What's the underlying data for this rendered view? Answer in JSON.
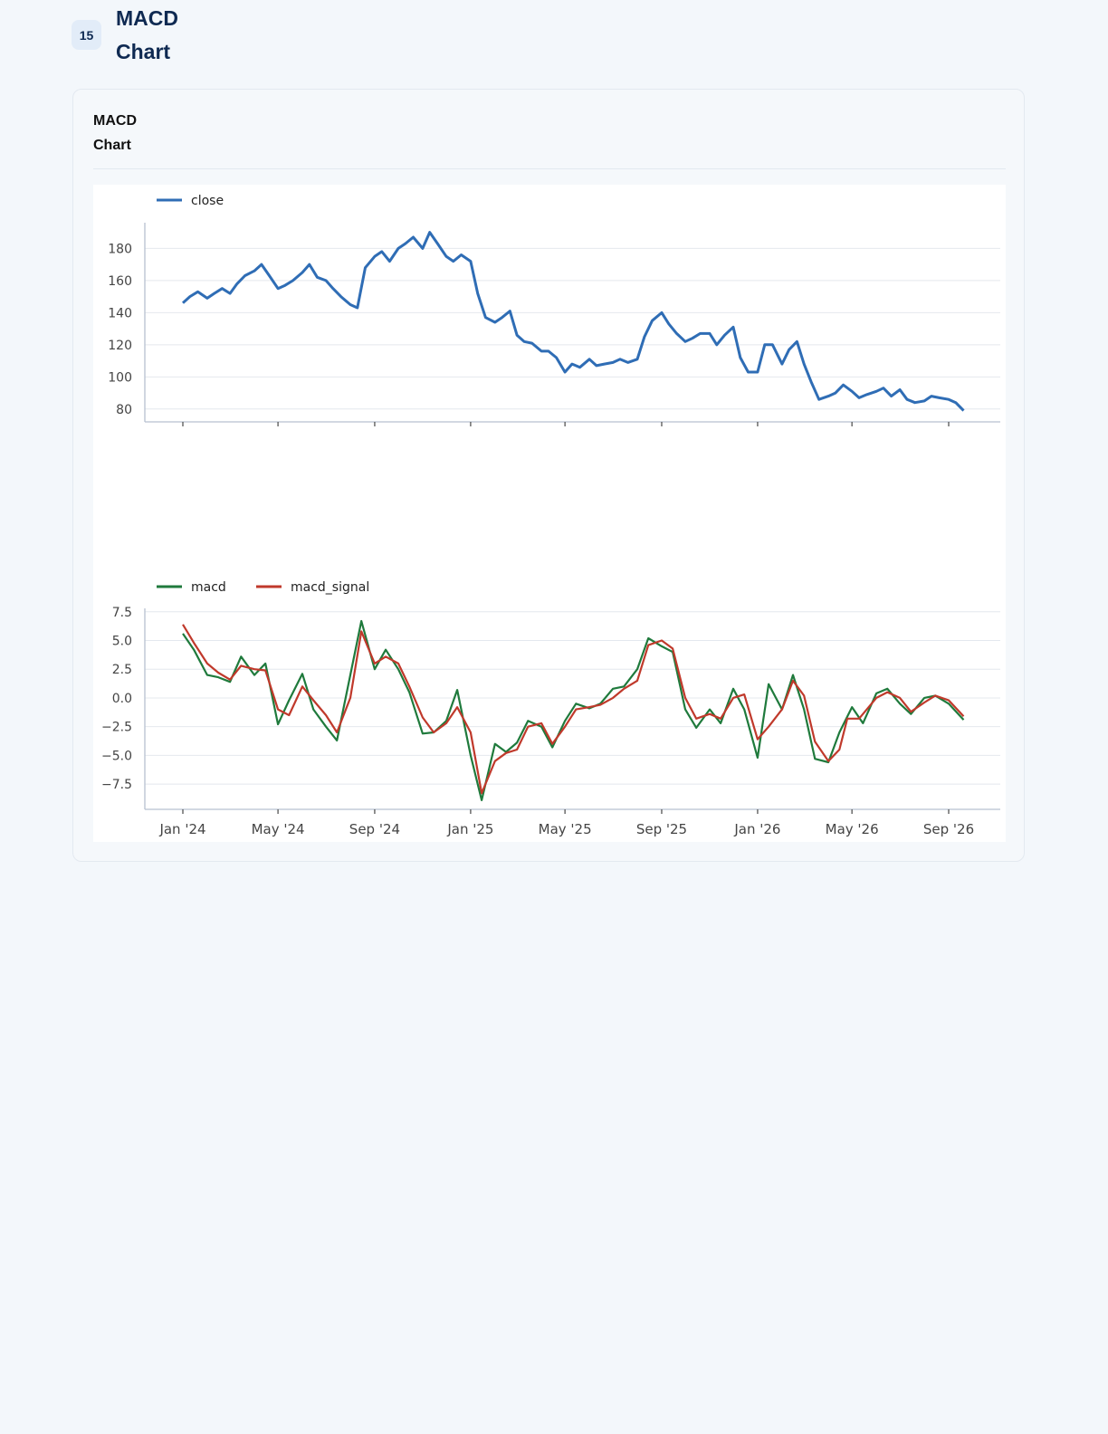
{
  "header": {
    "badge": "15",
    "title": "MACD\nChart"
  },
  "card": {
    "title": "MACD\nChart"
  },
  "chart_data": [
    {
      "type": "line",
      "grid": true,
      "legend_placement": "top-left",
      "xlabel": "",
      "ylabel": "",
      "ylim": [
        72,
        196
      ],
      "yticks": [
        80,
        100,
        120,
        140,
        160,
        180
      ],
      "series": [
        {
          "name": "close",
          "color": "#2f6db5",
          "x": [
            "2024-01-01",
            "2024-01-10",
            "2024-01-20",
            "2024-02-01",
            "2024-02-10",
            "2024-02-20",
            "2024-03-01",
            "2024-03-10",
            "2024-03-20",
            "2024-04-01",
            "2024-04-10",
            "2024-04-20",
            "2024-05-01",
            "2024-05-10",
            "2024-05-20",
            "2024-06-01",
            "2024-06-10",
            "2024-06-20",
            "2024-07-01",
            "2024-07-10",
            "2024-07-20",
            "2024-08-01",
            "2024-08-10",
            "2024-08-20",
            "2024-09-01",
            "2024-09-10",
            "2024-09-20",
            "2024-10-01",
            "2024-10-10",
            "2024-10-20",
            "2024-11-01",
            "2024-11-10",
            "2024-11-20",
            "2024-12-01",
            "2024-12-10",
            "2024-12-20",
            "2025-01-01",
            "2025-01-10",
            "2025-01-20",
            "2025-02-01",
            "2025-02-10",
            "2025-02-20",
            "2025-03-01",
            "2025-03-10",
            "2025-03-20",
            "2025-04-01",
            "2025-04-10",
            "2025-04-20",
            "2025-05-01",
            "2025-05-10",
            "2025-05-20",
            "2025-06-01",
            "2025-06-10",
            "2025-06-20",
            "2025-07-01",
            "2025-07-10",
            "2025-07-20",
            "2025-08-01",
            "2025-08-10",
            "2025-08-20",
            "2025-09-01",
            "2025-09-10",
            "2025-09-20",
            "2025-10-01",
            "2025-10-10",
            "2025-10-20",
            "2025-11-01",
            "2025-11-10",
            "2025-11-20",
            "2025-12-01",
            "2025-12-10",
            "2025-12-20",
            "2026-01-01",
            "2026-01-10",
            "2026-01-20",
            "2026-02-01",
            "2026-02-10",
            "2026-02-20",
            "2026-03-01",
            "2026-03-10",
            "2026-03-20",
            "2026-04-01",
            "2026-04-10",
            "2026-04-20",
            "2026-05-01",
            "2026-05-10",
            "2026-05-20",
            "2026-06-01",
            "2026-06-10",
            "2026-06-20",
            "2026-07-01",
            "2026-07-10",
            "2026-07-20",
            "2026-08-01",
            "2026-08-10",
            "2026-08-20",
            "2026-09-01",
            "2026-09-10",
            "2026-09-20"
          ],
          "values": [
            146,
            150,
            153,
            149,
            152,
            155,
            152,
            158,
            163,
            166,
            170,
            163,
            155,
            157,
            160,
            165,
            170,
            162,
            160,
            155,
            150,
            145,
            143,
            168,
            175,
            178,
            172,
            180,
            183,
            187,
            180,
            190,
            183,
            175,
            172,
            176,
            172,
            152,
            137,
            134,
            137,
            141,
            126,
            122,
            121,
            116,
            116,
            112,
            103,
            108,
            106,
            111,
            107,
            108,
            109,
            111,
            109,
            111,
            125,
            135,
            140,
            133,
            127,
            122,
            124,
            127,
            127,
            120,
            126,
            131,
            112,
            103,
            103,
            120,
            120,
            108,
            117,
            122,
            108,
            97,
            86,
            88,
            90,
            95,
            91,
            87,
            89,
            91,
            93,
            88,
            92,
            86,
            84,
            85,
            88,
            87,
            86,
            84,
            79
          ]
        }
      ]
    },
    {
      "type": "line",
      "grid": true,
      "legend_placement": "top-left",
      "xlabel": "",
      "ylabel": "",
      "ylim": [
        -9.7,
        7.8
      ],
      "yticks": [
        -7.5,
        -5.0,
        -2.5,
        0.0,
        2.5,
        5.0,
        7.5
      ],
      "xticks": [
        "Jan '24",
        "May '24",
        "Sep '24",
        "Jan '25",
        "May '25",
        "Sep '25",
        "Jan '26",
        "May '26",
        "Sep '26"
      ],
      "series": [
        {
          "name": "macd",
          "color": "#1f7a3c",
          "x": [
            "2024-01-01",
            "2024-01-15",
            "2024-02-01",
            "2024-02-15",
            "2024-03-01",
            "2024-03-15",
            "2024-04-01",
            "2024-04-15",
            "2024-05-01",
            "2024-05-15",
            "2024-06-01",
            "2024-06-15",
            "2024-07-01",
            "2024-07-15",
            "2024-08-01",
            "2024-08-15",
            "2024-09-01",
            "2024-09-15",
            "2024-10-01",
            "2024-10-15",
            "2024-11-01",
            "2024-11-15",
            "2024-12-01",
            "2024-12-15",
            "2025-01-01",
            "2025-01-15",
            "2025-02-01",
            "2025-02-15",
            "2025-03-01",
            "2025-03-15",
            "2025-04-01",
            "2025-04-15",
            "2025-05-01",
            "2025-05-15",
            "2025-06-01",
            "2025-06-15",
            "2025-07-01",
            "2025-07-15",
            "2025-08-01",
            "2025-08-15",
            "2025-09-01",
            "2025-09-15",
            "2025-10-01",
            "2025-10-15",
            "2025-11-01",
            "2025-11-15",
            "2025-12-01",
            "2025-12-15",
            "2026-01-01",
            "2026-01-15",
            "2026-02-01",
            "2026-02-15",
            "2026-03-01",
            "2026-03-15",
            "2026-04-01",
            "2026-04-15",
            "2026-05-01",
            "2026-05-15",
            "2026-06-01",
            "2026-06-15",
            "2026-07-01",
            "2026-07-15",
            "2026-08-01",
            "2026-08-15",
            "2026-09-01",
            "2026-09-20"
          ],
          "values": [
            5.6,
            4.2,
            2.0,
            1.8,
            1.4,
            3.6,
            2.0,
            3.0,
            -2.3,
            -0.2,
            2.1,
            -1.0,
            -2.5,
            -3.7,
            2.0,
            6.7,
            2.5,
            4.2,
            2.5,
            0.5,
            -3.1,
            -3.0,
            -2.0,
            0.7,
            -5.0,
            -8.9,
            -4.0,
            -4.7,
            -3.9,
            -2.0,
            -2.5,
            -4.3,
            -2.0,
            -0.5,
            -0.9,
            -0.5,
            0.8,
            1.0,
            2.5,
            5.2,
            4.5,
            4.0,
            -1.0,
            -2.6,
            -1.0,
            -2.2,
            0.8,
            -1.0,
            -5.2,
            1.2,
            -1.0,
            2.0,
            -1.0,
            -5.3,
            -5.6,
            -3.0,
            -0.8,
            -2.2,
            0.4,
            0.8,
            -0.5,
            -1.4,
            0.0,
            0.2,
            -0.5,
            -1.9
          ]
        },
        {
          "name": "macd_signal",
          "color": "#c0392b",
          "x": [
            "2024-01-01",
            "2024-01-15",
            "2024-02-01",
            "2024-02-15",
            "2024-03-01",
            "2024-03-15",
            "2024-04-01",
            "2024-04-15",
            "2024-05-01",
            "2024-05-15",
            "2024-06-01",
            "2024-06-15",
            "2024-07-01",
            "2024-07-15",
            "2024-08-01",
            "2024-08-15",
            "2024-09-01",
            "2024-09-15",
            "2024-10-01",
            "2024-10-15",
            "2024-11-01",
            "2024-11-15",
            "2024-12-01",
            "2024-12-15",
            "2025-01-01",
            "2025-01-15",
            "2025-02-01",
            "2025-02-15",
            "2025-03-01",
            "2025-03-15",
            "2025-04-01",
            "2025-04-15",
            "2025-05-01",
            "2025-05-15",
            "2025-06-01",
            "2025-06-15",
            "2025-07-01",
            "2025-07-15",
            "2025-08-01",
            "2025-08-15",
            "2025-09-01",
            "2025-09-15",
            "2025-10-01",
            "2025-10-15",
            "2025-11-01",
            "2025-11-15",
            "2025-12-01",
            "2025-12-15",
            "2026-01-01",
            "2026-01-15",
            "2026-02-01",
            "2026-02-15",
            "2026-03-01",
            "2026-03-15",
            "2026-04-01",
            "2026-04-15",
            "2026-04-25",
            "2026-05-10",
            "2026-06-01",
            "2026-06-15",
            "2026-07-01",
            "2026-07-15",
            "2026-08-01",
            "2026-08-15",
            "2026-09-01",
            "2026-09-20"
          ],
          "values": [
            6.4,
            4.8,
            3.0,
            2.2,
            1.6,
            2.8,
            2.5,
            2.4,
            -1.0,
            -1.5,
            1.0,
            -0.2,
            -1.5,
            -3.0,
            0.0,
            5.8,
            3.0,
            3.6,
            3.0,
            1.0,
            -1.7,
            -3.0,
            -2.2,
            -0.8,
            -3.0,
            -8.3,
            -5.5,
            -4.8,
            -4.5,
            -2.5,
            -2.2,
            -4.0,
            -2.5,
            -1.0,
            -0.8,
            -0.6,
            0.0,
            0.8,
            1.5,
            4.6,
            5.0,
            4.3,
            0.0,
            -1.8,
            -1.4,
            -1.8,
            0.0,
            0.3,
            -3.6,
            -2.5,
            -1.0,
            1.5,
            0.2,
            -3.8,
            -5.5,
            -4.5,
            -1.8,
            -1.8,
            0.0,
            0.5,
            0.0,
            -1.2,
            -0.4,
            0.2,
            -0.2,
            -1.6
          ]
        }
      ]
    }
  ]
}
